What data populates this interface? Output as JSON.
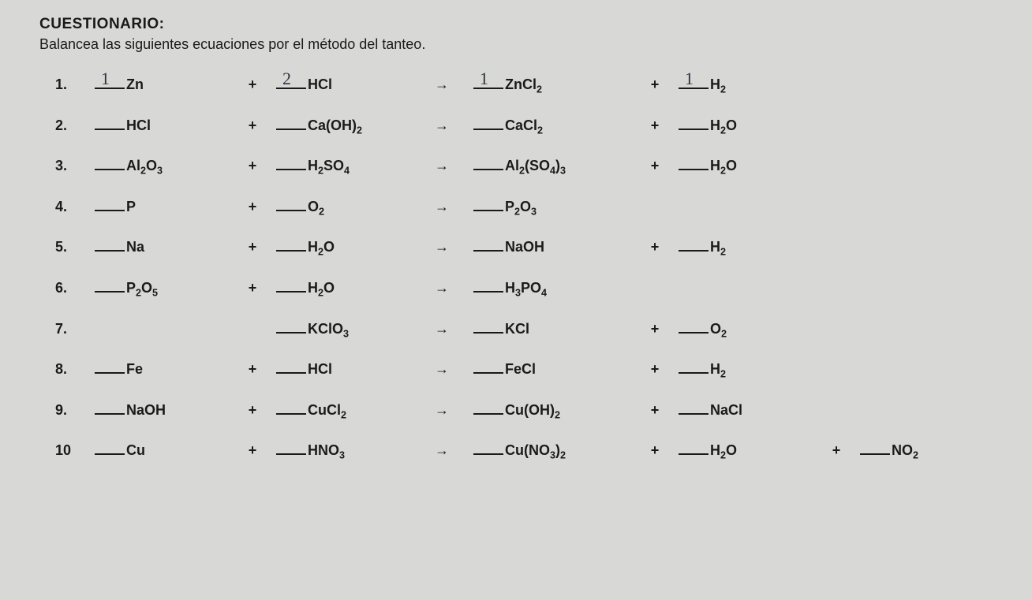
{
  "header": {
    "title": "CUESTIONARIO:",
    "subtitle": "Balancea las siguientes ecuaciones por el método del tanteo."
  },
  "symbols": {
    "plus": "+",
    "arrow": "→"
  },
  "rows": [
    {
      "n": "1.",
      "t1": {
        "coef": "1",
        "f": "Zn"
      },
      "op1": "+",
      "t2": {
        "coef": "2",
        "f": "HCl"
      },
      "arrow": true,
      "t3": {
        "coef": "1",
        "f": "ZnCl<sub>2</sub>"
      },
      "op2": "+",
      "t4": {
        "coef": "1",
        "f": "H<sub>2</sub>"
      }
    },
    {
      "n": "2.",
      "t1": {
        "f": "HCl"
      },
      "op1": "+",
      "t2": {
        "f": "Ca(OH)<sub>2</sub>"
      },
      "arrow": true,
      "t3": {
        "f": "CaCl<sub>2</sub>"
      },
      "op2": "+",
      "t4": {
        "f": "H<sub>2</sub>O"
      }
    },
    {
      "n": "3.",
      "t1": {
        "f": "Al<sub>2</sub>O<sub>3</sub>"
      },
      "op1": "+",
      "t2": {
        "f": "H<sub>2</sub>SO<sub>4</sub>"
      },
      "arrow": true,
      "t3": {
        "f": "Al<sub>2</sub>(SO<sub>4</sub>)<sub>3</sub>"
      },
      "op2": "+",
      "t4": {
        "f": "H<sub>2</sub>O"
      }
    },
    {
      "n": "4.",
      "t1": {
        "f": "P"
      },
      "op1": "+",
      "t2": {
        "f": "O<sub>2</sub>"
      },
      "arrow": true,
      "t3": {
        "f": "P<sub>2</sub>O<sub>3</sub>"
      }
    },
    {
      "n": "5.",
      "t1": {
        "f": "Na"
      },
      "op1": "+",
      "t2": {
        "f": "H<sub>2</sub>O"
      },
      "arrow": true,
      "t3": {
        "f": "NaOH"
      },
      "op2": "+",
      "t4": {
        "f": "H<sub>2</sub>"
      }
    },
    {
      "n": "6.",
      "t1": {
        "f": "P<sub>2</sub>O<sub>5</sub>"
      },
      "op1": "+",
      "t2": {
        "f": "H<sub>2</sub>O"
      },
      "arrow": true,
      "t3": {
        "f": "H<sub>3</sub>PO<sub>4</sub>"
      }
    },
    {
      "n": "7.",
      "t2": {
        "f": "KClO<sub>3</sub>"
      },
      "arrow": true,
      "t3": {
        "f": "KCl"
      },
      "op2": "+",
      "t4": {
        "f": " O<sub>2</sub>"
      }
    },
    {
      "n": "8.",
      "t1": {
        "f": "Fe"
      },
      "op1": "+",
      "t2": {
        "f": "HCl"
      },
      "arrow": true,
      "t3": {
        "f": "FeCl"
      },
      "op2": "+",
      "t4": {
        "f": "H<sub>2</sub>"
      }
    },
    {
      "n": "9.",
      "t1": {
        "f": "NaOH"
      },
      "op1": "+",
      "t2": {
        "f": "CuCl<sub>2</sub>"
      },
      "arrow": true,
      "t3": {
        "f": "Cu(OH)<sub>2</sub>"
      },
      "op2": "+",
      "t4": {
        "f": "NaCl"
      }
    },
    {
      "n": "10",
      "t1": {
        "f": "Cu"
      },
      "op1": "+",
      "t2": {
        "f": "HNO<sub>3</sub>"
      },
      "arrow": true,
      "t3": {
        "f": "Cu(NO<sub>3</sub>)<sub>2</sub>"
      },
      "op2": "+",
      "t4": {
        "f": " H<sub>2</sub>O"
      },
      "op3": "+",
      "t5": {
        "f": "NO<sub>2</sub>"
      }
    }
  ]
}
